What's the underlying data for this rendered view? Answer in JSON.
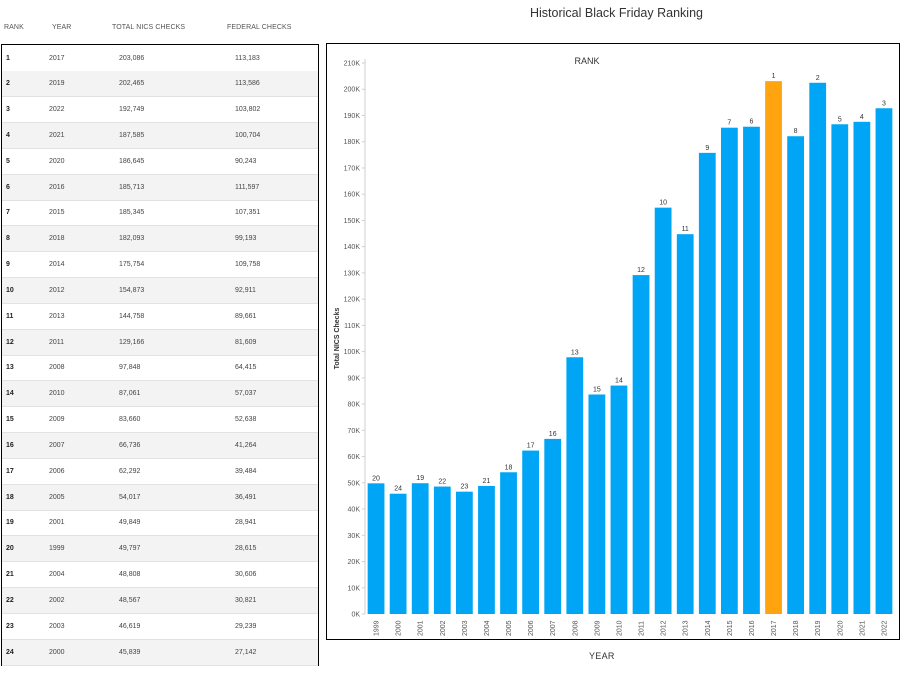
{
  "table": {
    "headers": {
      "rank": "RANK",
      "year": "YEAR",
      "total": "TOTAL NICS CHECKS",
      "federal": "FEDERAL CHECKS"
    },
    "rows": [
      {
        "rank": "1",
        "year": "2017",
        "total": "203,086",
        "federal": "113,183"
      },
      {
        "rank": "2",
        "year": "2019",
        "total": "202,465",
        "federal": "113,586"
      },
      {
        "rank": "3",
        "year": "2022",
        "total": "192,749",
        "federal": "103,802"
      },
      {
        "rank": "4",
        "year": "2021",
        "total": "187,585",
        "federal": "100,704"
      },
      {
        "rank": "5",
        "year": "2020",
        "total": "186,645",
        "federal": "90,243"
      },
      {
        "rank": "6",
        "year": "2016",
        "total": "185,713",
        "federal": "111,597"
      },
      {
        "rank": "7",
        "year": "2015",
        "total": "185,345",
        "federal": "107,351"
      },
      {
        "rank": "8",
        "year": "2018",
        "total": "182,093",
        "federal": "99,193"
      },
      {
        "rank": "9",
        "year": "2014",
        "total": "175,754",
        "federal": "109,758"
      },
      {
        "rank": "10",
        "year": "2012",
        "total": "154,873",
        "federal": "92,911"
      },
      {
        "rank": "11",
        "year": "2013",
        "total": "144,758",
        "federal": "89,661"
      },
      {
        "rank": "12",
        "year": "2011",
        "total": "129,166",
        "federal": "81,609"
      },
      {
        "rank": "13",
        "year": "2008",
        "total": "97,848",
        "federal": "64,415"
      },
      {
        "rank": "14",
        "year": "2010",
        "total": "87,061",
        "federal": "57,037"
      },
      {
        "rank": "15",
        "year": "2009",
        "total": "83,660",
        "federal": "52,638"
      },
      {
        "rank": "16",
        "year": "2007",
        "total": "66,736",
        "federal": "41,264"
      },
      {
        "rank": "17",
        "year": "2006",
        "total": "62,292",
        "federal": "39,484"
      },
      {
        "rank": "18",
        "year": "2005",
        "total": "54,017",
        "federal": "36,491"
      },
      {
        "rank": "19",
        "year": "2001",
        "total": "49,849",
        "federal": "28,941"
      },
      {
        "rank": "20",
        "year": "1999",
        "total": "49,797",
        "federal": "28,615"
      },
      {
        "rank": "21",
        "year": "2004",
        "total": "48,808",
        "federal": "30,606"
      },
      {
        "rank": "22",
        "year": "2002",
        "total": "48,567",
        "federal": "30,821"
      },
      {
        "rank": "23",
        "year": "2003",
        "total": "46,619",
        "federal": "29,239"
      },
      {
        "rank": "24",
        "year": "2000",
        "total": "45,839",
        "federal": "27,142"
      }
    ]
  },
  "chart_data": {
    "type": "bar",
    "title": "Historical Black Friday Ranking",
    "subtitle": "RANK",
    "xlabel": "YEAR",
    "ylabel": "Total NICS Checks",
    "ylim": [
      0,
      210000
    ],
    "yticks": [
      0,
      10000,
      20000,
      30000,
      40000,
      50000,
      60000,
      70000,
      80000,
      90000,
      100000,
      110000,
      120000,
      130000,
      140000,
      150000,
      160000,
      170000,
      180000,
      190000,
      200000,
      210000
    ],
    "ytick_labels": [
      "0K",
      "10K",
      "20K",
      "30K",
      "40K",
      "50K",
      "60K",
      "70K",
      "80K",
      "90K",
      "100K",
      "110K",
      "120K",
      "130K",
      "140K",
      "150K",
      "160K",
      "170K",
      "180K",
      "190K",
      "200K",
      "210K"
    ],
    "categories": [
      "1999",
      "2000",
      "2001",
      "2002",
      "2003",
      "2004",
      "2005",
      "2006",
      "2007",
      "2008",
      "2009",
      "2010",
      "2011",
      "2012",
      "2013",
      "2014",
      "2015",
      "2016",
      "2017",
      "2018",
      "2019",
      "2020",
      "2021",
      "2022"
    ],
    "values": [
      49797,
      45839,
      49849,
      48567,
      46619,
      48808,
      54017,
      62292,
      66736,
      97848,
      83660,
      87061,
      129166,
      154873,
      144758,
      175754,
      185345,
      185713,
      203086,
      182093,
      202465,
      186645,
      187585,
      192749
    ],
    "bar_labels": [
      "20",
      "24",
      "19",
      "22",
      "23",
      "21",
      "18",
      "17",
      "16",
      "13",
      "15",
      "14",
      "12",
      "10",
      "11",
      "9",
      "7",
      "6",
      "1",
      "8",
      "2",
      "5",
      "4",
      "3"
    ],
    "highlight_category": "2017",
    "colors": {
      "bar": "#00a6f5",
      "highlight": "#ffa40f"
    },
    "grid": false
  }
}
